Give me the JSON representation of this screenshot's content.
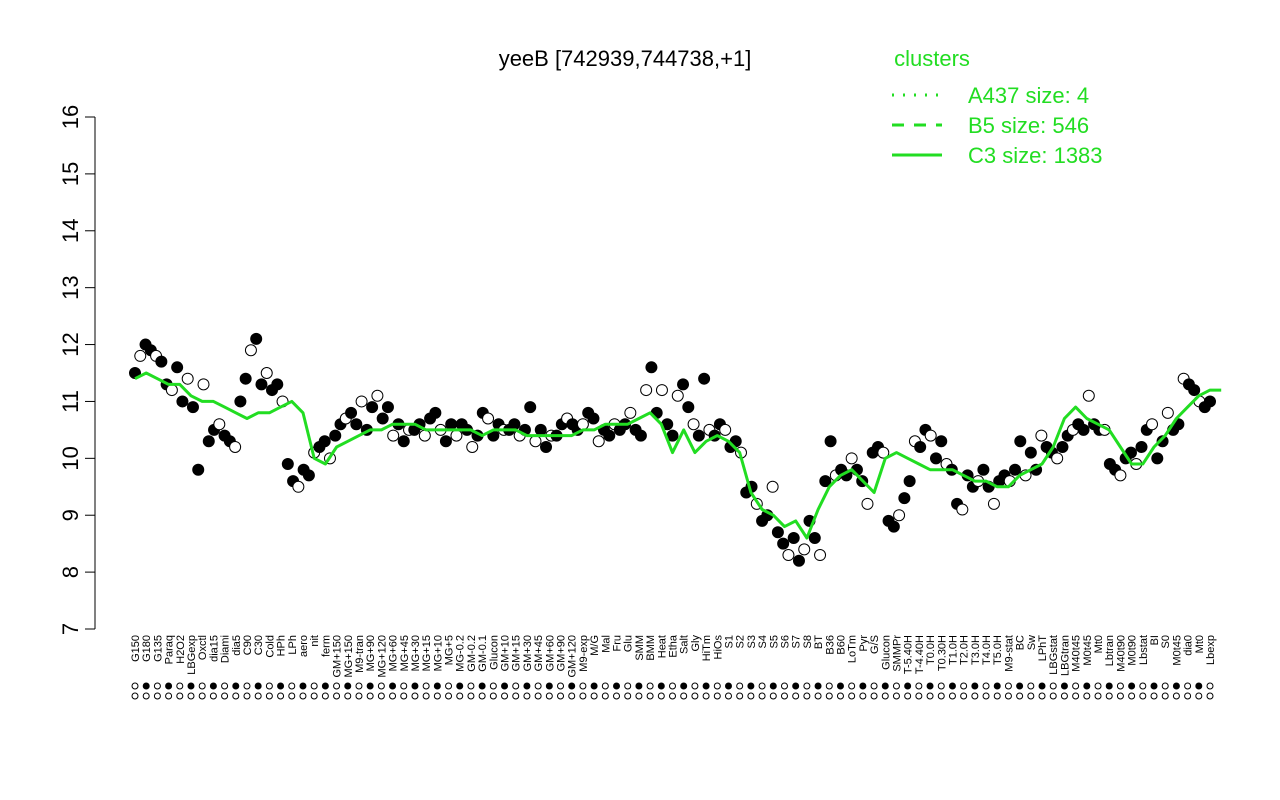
{
  "chart_data": {
    "type": "line",
    "title": "yeeB [742939,744738,+1]",
    "ylim": [
      7,
      16
    ],
    "yticks": [
      7,
      8,
      9,
      10,
      11,
      12,
      13,
      14,
      15,
      16
    ],
    "legend": {
      "title": "clusters",
      "placement": "top-right",
      "color": "#22dd22",
      "entries": [
        {
          "label": "A437 size: 4",
          "style": "dotted"
        },
        {
          "label": "B5 size: 546",
          "style": "dashed"
        },
        {
          "label": "C3 size: 1383",
          "style": "solid"
        }
      ]
    },
    "x_tick_labels": [
      "G150",
      "G180",
      "G135",
      "Paraq",
      "H2O2",
      "LBGexp",
      "Oxctl",
      "dia15",
      "Diami",
      "dia5",
      "C90",
      "C30",
      "Cold",
      "HPh",
      "LPh",
      "aero",
      "nit",
      "ferm",
      "GM+150",
      "MG+150",
      "M9-tran",
      "MG+90",
      "MG+120",
      "MG+60",
      "MG+45",
      "MG+30",
      "MG+15",
      "MG+10",
      "MG+5",
      "MG-0.2",
      "GM-0.2",
      "GM-0.1",
      "Glucon",
      "GM+10",
      "GM+15",
      "GM+30",
      "GM+45",
      "GM+60",
      "GM+90",
      "GM+120",
      "M9-exp",
      "M/G",
      "Mal",
      "Fru",
      "Glu",
      "SMM",
      "BMM",
      "Heat",
      "Etha",
      "Salt",
      "Gly",
      "HiTm",
      "HiOs",
      "S1",
      "S2",
      "S3",
      "S4",
      "S5",
      "S6",
      "S7",
      "S8",
      "BT",
      "B36",
      "B60",
      "LoTm",
      "Pyr",
      "G/S",
      "Glucon",
      "SMMPr",
      "T-5.40H",
      "T-4.40H",
      "T0.0H",
      "T0.30H",
      "T1.0H",
      "T2.0H",
      "T3.0H",
      "T4.0H",
      "T5.0H",
      "M9-stat",
      "BC",
      "Sw",
      "LPhT",
      "LBGstat",
      "LBGtran",
      "M40t45",
      "M0t45",
      "Mt0",
      "Lbtran",
      "M40t90",
      "M0t90",
      "Lbstat",
      "BI",
      "S0",
      "M0t45",
      "dia0",
      "Mt0",
      "Lbexp"
    ],
    "series": [
      {
        "name": "C3 size: 1383",
        "style": "solid",
        "values": [
          11.4,
          11.5,
          11.4,
          11.3,
          11.3,
          11.1,
          11.0,
          11.0,
          10.9,
          10.8,
          10.7,
          10.8,
          10.8,
          10.9,
          11.0,
          10.8,
          10.0,
          9.9,
          10.2,
          10.3,
          10.4,
          10.5,
          10.5,
          10.6,
          10.6,
          10.6,
          10.5,
          10.5,
          10.5,
          10.5,
          10.5,
          10.4,
          10.5,
          10.5,
          10.5,
          10.4,
          10.4,
          10.4,
          10.4,
          10.4,
          10.5,
          10.5,
          10.6,
          10.6,
          10.6,
          10.7,
          10.8,
          10.6,
          10.1,
          10.5,
          10.1,
          10.3,
          10.4,
          10.3,
          10.1,
          9.4,
          9.1,
          9.0,
          8.8,
          8.9,
          8.6,
          9.1,
          9.5,
          9.7,
          9.8,
          9.6,
          9.4,
          10.0,
          10.1,
          10.0,
          9.9,
          9.8,
          9.8,
          9.8,
          9.7,
          9.6,
          9.6,
          9.5,
          9.5,
          9.7,
          9.8,
          9.9,
          10.2,
          10.7,
          10.9,
          10.7,
          10.6,
          10.5,
          10.2,
          9.9,
          9.9,
          10.2,
          10.4,
          10.7,
          10.9,
          11.1,
          11.2,
          11.2
        ]
      }
    ],
    "points": [
      11.5,
      11.8,
      12.0,
      11.9,
      11.8,
      11.7,
      11.3,
      11.2,
      11.6,
      11.0,
      11.4,
      10.9,
      9.8,
      11.3,
      10.3,
      10.5,
      10.6,
      10.4,
      10.3,
      10.2,
      11.0,
      11.4,
      11.9,
      12.1,
      11.3,
      11.5,
      11.2,
      11.3,
      11.0,
      9.9,
      9.6,
      9.5,
      9.8,
      9.7,
      10.1,
      10.2,
      10.3,
      10.0,
      10.4,
      10.6,
      10.7,
      10.8,
      10.6,
      11.0,
      10.5,
      10.9,
      11.1,
      10.7,
      10.9,
      10.4,
      10.6,
      10.3,
      10.5,
      10.5,
      10.6,
      10.4,
      10.7,
      10.8,
      10.5,
      10.3,
      10.6,
      10.4,
      10.6,
      10.5,
      10.2,
      10.4,
      10.8,
      10.7,
      10.4,
      10.6,
      10.5,
      10.5,
      10.6,
      10.4,
      10.5,
      10.9,
      10.3,
      10.5,
      10.2,
      10.4,
      10.4,
      10.6,
      10.7,
      10.6,
      10.5,
      10.6,
      10.8,
      10.7,
      10.3,
      10.5,
      10.4,
      10.6,
      10.5,
      10.6,
      10.8,
      10.5,
      10.4,
      11.2,
      11.6,
      10.8,
      11.2,
      10.6,
      10.4,
      11.1,
      11.3,
      10.9,
      10.6,
      10.4,
      11.4,
      10.5,
      10.4,
      10.6,
      10.5,
      10.2,
      10.3,
      10.1,
      9.4,
      9.5,
      9.2,
      8.9,
      9.0,
      9.5,
      8.7,
      8.5,
      8.3,
      8.6,
      8.2,
      8.4,
      8.9,
      8.6,
      8.3,
      9.6,
      10.3,
      9.7,
      9.8,
      9.7,
      10.0,
      9.8,
      9.6,
      9.2,
      10.1,
      10.2,
      10.1,
      8.9,
      8.8,
      9.0,
      9.3,
      9.6,
      10.3,
      10.2,
      10.5,
      10.4,
      10.0,
      10.3,
      9.9,
      9.8,
      9.2,
      9.1,
      9.7,
      9.5,
      9.6,
      9.8,
      9.5,
      9.2,
      9.6,
      9.7,
      9.6,
      9.8,
      10.3,
      9.7,
      10.1,
      9.8,
      10.4,
      10.2,
      10.1,
      10.0,
      10.2,
      10.4,
      10.5,
      10.6,
      10.5,
      11.1,
      10.6,
      10.5,
      10.5,
      9.9,
      9.8,
      9.7,
      10.0,
      10.1,
      9.9,
      10.2,
      10.5,
      10.6,
      10.0,
      10.3,
      10.8,
      10.5,
      10.6,
      11.4,
      11.3,
      11.2,
      11.0,
      10.9,
      11.0
    ]
  }
}
